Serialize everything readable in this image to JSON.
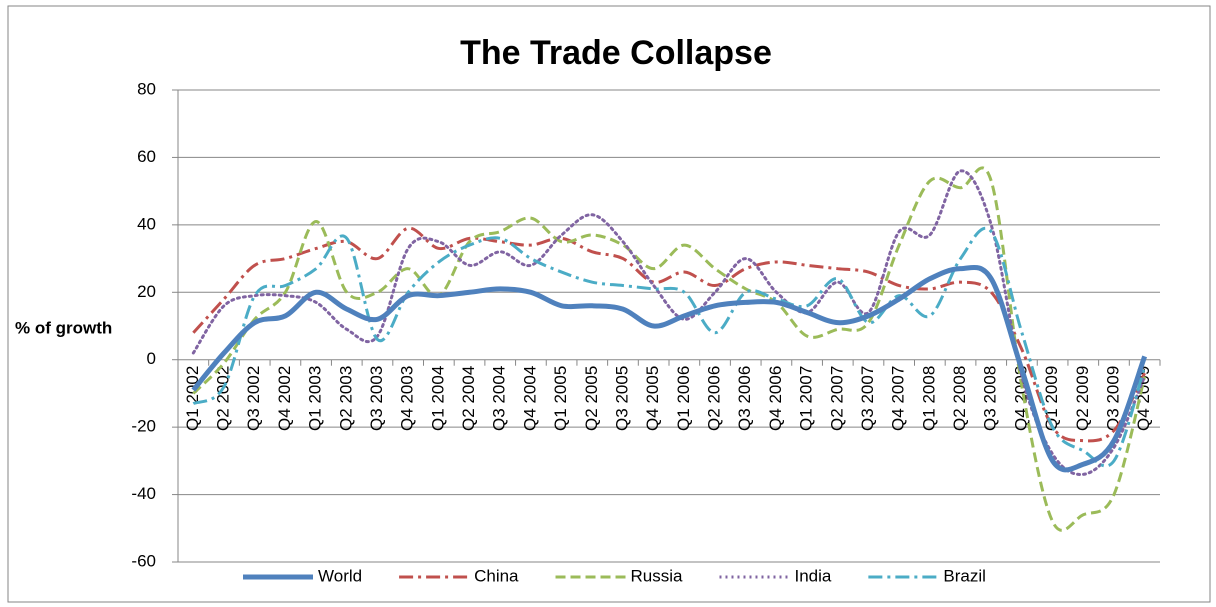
{
  "chart_data": {
    "type": "line",
    "title": "The Trade Collapse",
    "y_label": "% of growth",
    "categories": [
      "Q1 2002",
      "Q2 2002",
      "Q3 2002",
      "Q4 2002",
      "Q1 2003",
      "Q2 2003",
      "Q3 2003",
      "Q4 2003",
      "Q1 2004",
      "Q2 2004",
      "Q3 2004",
      "Q4 2004",
      "Q1 2005",
      "Q2 2005",
      "Q3 2005",
      "Q4 2005",
      "Q1 2006",
      "Q2 2006",
      "Q3 2006",
      "Q4 2006",
      "Q1 2007",
      "Q2 2007",
      "Q3 2007",
      "Q4 2007",
      "Q1 2008",
      "Q2 2008",
      "Q3 2008",
      "Q4 2008",
      "Q1 2009",
      "Q2 2009",
      "Q3 2009",
      "Q4 2009"
    ],
    "series": [
      {
        "name": "World",
        "color": "#4f81bd",
        "values": [
          -9,
          2,
          11,
          13,
          20,
          15,
          12,
          19,
          19,
          20,
          21,
          20,
          16,
          16,
          15,
          10,
          13,
          16,
          17,
          17,
          14,
          11,
          13,
          18,
          24,
          27,
          24,
          -3,
          -30,
          -31,
          -24,
          1
        ]
      },
      {
        "name": "China",
        "color": "#c0504d",
        "values": [
          8,
          18,
          28,
          30,
          33,
          35,
          30,
          39,
          33,
          36,
          35,
          34,
          36,
          32,
          30,
          23,
          26,
          22,
          27,
          29,
          28,
          27,
          26,
          22,
          21,
          23,
          20,
          3,
          -20,
          -24,
          -21,
          -4
        ]
      },
      {
        "name": "Russia",
        "color": "#9bbb59",
        "values": [
          -10,
          -1,
          12,
          20,
          41,
          20,
          20,
          27,
          19,
          35,
          38,
          42,
          35,
          37,
          34,
          27,
          34,
          27,
          21,
          17,
          7,
          9,
          11,
          34,
          53,
          51,
          53,
          -8,
          -48,
          -46,
          -40,
          -5
        ]
      },
      {
        "name": "India",
        "color": "#8064a2",
        "values": [
          2,
          16,
          19,
          19,
          17,
          9,
          7,
          33,
          35,
          28,
          32,
          28,
          37,
          43,
          35,
          22,
          12,
          20,
          30,
          20,
          14,
          23,
          14,
          38,
          37,
          56,
          40,
          -5,
          -28,
          -34,
          -26,
          -5
        ]
      },
      {
        "name": "Brazil",
        "color": "#4bacc6",
        "values": [
          -13,
          -8,
          19,
          22,
          27,
          36,
          6,
          20,
          29,
          34,
          36,
          30,
          26,
          23,
          22,
          21,
          20,
          8,
          20,
          18,
          16,
          24,
          11,
          19,
          13,
          30,
          38,
          8,
          -20,
          -27,
          -30,
          -2
        ]
      }
    ],
    "ylim": [
      -60,
      80
    ],
    "yticks": [
      -60,
      -40,
      -20,
      0,
      20,
      40,
      60,
      80
    ],
    "grid": true,
    "legend": "bottom"
  }
}
